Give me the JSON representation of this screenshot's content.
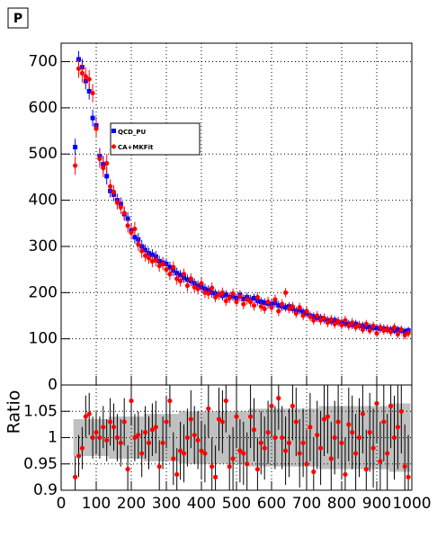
{
  "chart_data": [
    {
      "type": "scatter",
      "annotation": "P",
      "x": [
        40,
        50,
        60,
        70,
        80,
        90,
        100,
        110,
        120,
        130,
        140,
        150,
        160,
        170,
        180,
        190,
        200,
        210,
        220,
        230,
        240,
        250,
        260,
        270,
        280,
        290,
        300,
        310,
        320,
        330,
        340,
        350,
        360,
        370,
        380,
        390,
        400,
        410,
        420,
        430,
        440,
        450,
        460,
        470,
        480,
        490,
        500,
        510,
        520,
        530,
        540,
        550,
        560,
        570,
        580,
        590,
        600,
        610,
        620,
        630,
        640,
        650,
        660,
        670,
        680,
        690,
        700,
        710,
        720,
        730,
        740,
        750,
        760,
        770,
        780,
        790,
        800,
        810,
        820,
        830,
        840,
        850,
        860,
        870,
        880,
        890,
        900,
        910,
        920,
        930,
        940,
        950,
        960,
        970,
        980,
        990
      ],
      "series": [
        {
          "name": "QCD_PU",
          "color": "#0000ff",
          "marker": "square",
          "values": [
            515,
            705,
            688,
            658,
            636,
            578,
            562,
            495,
            478,
            452,
            420,
            412,
            400,
            392,
            370,
            360,
            335,
            320,
            315,
            300,
            292,
            285,
            282,
            278,
            268,
            265,
            262,
            255,
            248,
            242,
            238,
            232,
            228,
            225,
            220,
            215,
            212,
            208,
            205,
            200,
            198,
            196,
            193,
            195,
            190,
            192,
            188,
            195,
            186,
            190,
            185,
            188,
            182,
            180,
            178,
            176,
            175,
            178,
            172,
            170,
            168,
            170,
            165,
            160,
            162,
            158,
            155,
            150,
            148,
            145,
            145,
            142,
            140,
            138,
            140,
            136,
            135,
            133,
            132,
            130,
            132,
            128,
            128,
            126,
            125,
            124,
            123,
            122,
            122,
            120,
            120,
            118,
            120,
            118,
            116,
            118
          ],
          "errors": [
            18,
            18,
            18,
            18,
            18,
            18,
            18,
            18,
            18,
            18,
            14,
            14,
            14,
            14,
            14,
            14,
            14,
            14,
            14,
            14,
            12,
            12,
            12,
            12,
            12,
            12,
            12,
            12,
            12,
            12,
            11,
            11,
            11,
            11,
            11,
            11,
            11,
            11,
            11,
            11,
            10,
            10,
            10,
            10,
            10,
            10,
            10,
            10,
            10,
            10,
            10,
            10,
            10,
            10,
            10,
            10,
            10,
            10,
            10,
            10,
            9,
            9,
            9,
            9,
            9,
            9,
            9,
            9,
            9,
            9,
            9,
            9,
            9,
            9,
            9,
            9,
            9,
            9,
            9,
            9,
            9,
            9,
            9,
            9,
            9,
            9,
            9,
            9,
            9,
            9,
            8,
            8,
            8,
            8,
            8,
            8
          ]
        },
        {
          "name": "CA+MKFit",
          "color": "#ff0000",
          "marker": "circle",
          "values": [
            475,
            685,
            675,
            668,
            662,
            632,
            555,
            490,
            470,
            480,
            430,
            418,
            395,
            385,
            372,
            345,
            330,
            338,
            305,
            290,
            280,
            275,
            268,
            270,
            258,
            262,
            250,
            240,
            255,
            230,
            225,
            240,
            215,
            230,
            212,
            208,
            220,
            200,
            198,
            210,
            190,
            195,
            200,
            182,
            188,
            198,
            180,
            192,
            175,
            185,
            180,
            172,
            190,
            170,
            165,
            180,
            168,
            185,
            160,
            175,
            200,
            165,
            170,
            155,
            168,
            150,
            160,
            148,
            140,
            150,
            140,
            145,
            135,
            142,
            132,
            138,
            130,
            140,
            128,
            135,
            125,
            130,
            120,
            132,
            118,
            128,
            112,
            125,
            118,
            122,
            115,
            125,
            110,
            120,
            108,
            112
          ],
          "errors": [
            20,
            20,
            20,
            20,
            20,
            20,
            20,
            20,
            20,
            20,
            15,
            15,
            15,
            15,
            15,
            15,
            15,
            15,
            15,
            15,
            13,
            13,
            13,
            13,
            13,
            13,
            13,
            13,
            13,
            13,
            12,
            12,
            12,
            12,
            12,
            12,
            12,
            12,
            12,
            12,
            11,
            11,
            11,
            11,
            11,
            11,
            11,
            11,
            11,
            11,
            11,
            11,
            11,
            11,
            11,
            11,
            11,
            11,
            11,
            11,
            10,
            10,
            10,
            10,
            10,
            10,
            10,
            10,
            10,
            10,
            10,
            10,
            10,
            10,
            10,
            10,
            10,
            10,
            10,
            10,
            9,
            9,
            9,
            9,
            9,
            9,
            9,
            9,
            9,
            9,
            9,
            9,
            9,
            9,
            9,
            9
          ]
        }
      ],
      "xlim": [
        0,
        1000
      ],
      "xticks": [
        0,
        100,
        200,
        300,
        400,
        500,
        600,
        700,
        800,
        900,
        1000
      ],
      "ylim": [
        0,
        740
      ],
      "yticks": [
        0,
        100,
        200,
        300,
        400,
        500,
        600,
        700
      ],
      "grid": true
    },
    {
      "type": "scatter",
      "ylabel": "Ratio",
      "color": "#ff0000",
      "band_color": "#c0c0c0",
      "x": [
        40,
        50,
        60,
        70,
        80,
        90,
        100,
        110,
        120,
        130,
        140,
        150,
        160,
        170,
        180,
        190,
        200,
        210,
        220,
        230,
        240,
        250,
        260,
        270,
        280,
        290,
        300,
        310,
        320,
        330,
        340,
        350,
        360,
        370,
        380,
        390,
        400,
        410,
        420,
        430,
        440,
        450,
        460,
        470,
        480,
        490,
        500,
        510,
        520,
        530,
        540,
        550,
        560,
        570,
        580,
        590,
        600,
        610,
        620,
        630,
        640,
        650,
        660,
        670,
        680,
        690,
        700,
        710,
        720,
        730,
        740,
        750,
        760,
        770,
        780,
        790,
        800,
        810,
        820,
        830,
        840,
        850,
        860,
        870,
        880,
        890,
        900,
        910,
        920,
        930,
        940,
        950,
        960,
        970,
        980,
        990
      ],
      "values": [
        0.925,
        0.965,
        0.98,
        1.04,
        1.045,
        1.0,
        1.01,
        1.0,
        1.02,
        0.995,
        1.03,
        1.02,
        1.0,
        0.99,
        1.03,
        0.94,
        1.07,
        1.0,
        1.005,
        0.97,
        1.01,
        0.99,
        1.015,
        1.02,
        0.945,
        0.99,
        1.03,
        1.07,
        0.96,
        0.93,
        0.975,
        0.97,
        1.0,
        1.035,
        1.005,
        0.995,
        0.975,
        0.97,
        1.055,
        0.945,
        0.925,
        1.035,
        1.03,
        1.07,
        0.945,
        0.96,
        1.04,
        0.975,
        0.97,
        0.95,
        1.04,
        1.015,
        0.94,
        0.99,
        0.98,
        1.01,
        1.06,
        1.0,
        1.075,
        1.0,
        0.975,
        0.99,
        1.06,
        1.03,
        0.97,
        0.99,
        0.95,
        1.02,
        0.935,
        1.005,
        0.98,
        1.035,
        1.04,
        0.96,
        1.0,
        1.03,
        0.99,
        0.93,
        1.025,
        1.01,
        0.97,
        1.0,
        1.045,
        0.94,
        1.01,
        0.98,
        1.065,
        0.955,
        1.03,
        0.97,
        1.06,
        1.0,
        1.02,
        1.05,
        0.945,
        0.925
      ],
      "errors": [
        0.04,
        0.04,
        0.04,
        0.04,
        0.04,
        0.04,
        0.04,
        0.04,
        0.04,
        0.04,
        0.045,
        0.045,
        0.045,
        0.045,
        0.045,
        0.045,
        0.045,
        0.045,
        0.045,
        0.045,
        0.05,
        0.05,
        0.05,
        0.05,
        0.05,
        0.05,
        0.05,
        0.05,
        0.05,
        0.05,
        0.055,
        0.055,
        0.055,
        0.055,
        0.055,
        0.055,
        0.055,
        0.055,
        0.055,
        0.055,
        0.06,
        0.06,
        0.06,
        0.06,
        0.06,
        0.06,
        0.06,
        0.06,
        0.06,
        0.06,
        0.06,
        0.06,
        0.06,
        0.06,
        0.06,
        0.06,
        0.06,
        0.06,
        0.06,
        0.06,
        0.065,
        0.065,
        0.065,
        0.065,
        0.065,
        0.065,
        0.065,
        0.065,
        0.065,
        0.065,
        0.07,
        0.07,
        0.07,
        0.07,
        0.07,
        0.07,
        0.07,
        0.07,
        0.07,
        0.07,
        0.075,
        0.075,
        0.075,
        0.075,
        0.075,
        0.075,
        0.075,
        0.075,
        0.075,
        0.075,
        0.08,
        0.08,
        0.08,
        0.08,
        0.08,
        0.08
      ],
      "band": [
        0.035,
        0.035,
        0.035,
        0.035,
        0.035,
        0.035,
        0.035,
        0.035,
        0.035,
        0.035,
        0.04,
        0.04,
        0.04,
        0.04,
        0.04,
        0.04,
        0.04,
        0.04,
        0.04,
        0.04,
        0.045,
        0.045,
        0.045,
        0.045,
        0.045,
        0.045,
        0.045,
        0.045,
        0.045,
        0.045,
        0.05,
        0.05,
        0.05,
        0.05,
        0.05,
        0.05,
        0.05,
        0.05,
        0.05,
        0.05,
        0.05,
        0.05,
        0.05,
        0.05,
        0.05,
        0.05,
        0.05,
        0.05,
        0.05,
        0.05,
        0.055,
        0.055,
        0.055,
        0.055,
        0.055,
        0.055,
        0.055,
        0.055,
        0.055,
        0.055,
        0.055,
        0.055,
        0.055,
        0.055,
        0.055,
        0.055,
        0.055,
        0.055,
        0.055,
        0.055,
        0.06,
        0.06,
        0.06,
        0.06,
        0.06,
        0.06,
        0.06,
        0.06,
        0.06,
        0.06,
        0.06,
        0.06,
        0.06,
        0.06,
        0.06,
        0.06,
        0.06,
        0.06,
        0.06,
        0.06,
        0.065,
        0.065,
        0.065,
        0.065,
        0.065,
        0.065
      ],
      "xlim": [
        0,
        1000
      ],
      "xticks": [
        0,
        100,
        200,
        300,
        400,
        500,
        600,
        700,
        800,
        900,
        1000
      ],
      "ylim": [
        0.9,
        1.1
      ],
      "yticks": [
        0.9,
        0.95,
        1,
        1.05
      ],
      "grid": true
    }
  ]
}
